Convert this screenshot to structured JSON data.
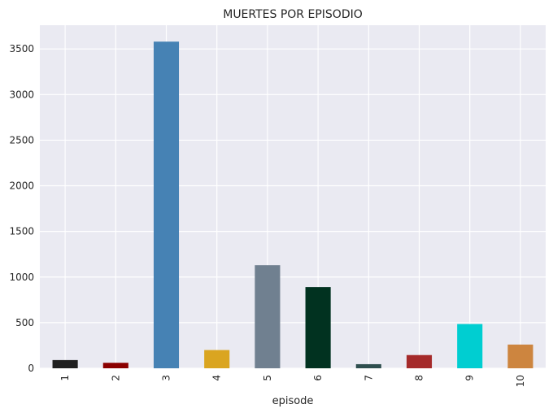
{
  "chart_data": {
    "type": "bar",
    "title": "MUERTES POR EPISODIO",
    "xlabel": "episode",
    "ylabel": "",
    "categories": [
      "1",
      "2",
      "3",
      "4",
      "5",
      "6",
      "7",
      "8",
      "9",
      "10"
    ],
    "values": [
      90,
      60,
      3580,
      200,
      1130,
      890,
      45,
      145,
      485,
      260
    ],
    "colors": [
      "#1f1f1f",
      "#8b0000",
      "#4682b4",
      "#daa520",
      "#708090",
      "#013220",
      "#2f4f4f",
      "#a52a2a",
      "#00ced1",
      "#cd853f"
    ],
    "yticks": [
      "0",
      "500",
      "1000",
      "1500",
      "2000",
      "2500",
      "3000",
      "3500"
    ],
    "ylim": [
      0,
      3760
    ],
    "grid": true,
    "background": "#eaeaf2",
    "grid_color": "#ffffff"
  }
}
